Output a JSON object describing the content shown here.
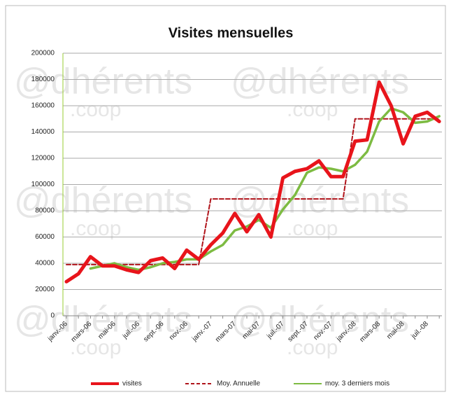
{
  "chart_data": {
    "type": "line",
    "title": "Visites mensuelles",
    "watermark": [
      "@dhérents",
      ".coop"
    ],
    "categories": [
      "janv.-06",
      null,
      "mars-06",
      null,
      "mai-06",
      null,
      "juil.-06",
      null,
      "sept.-06",
      null,
      "nov.-06",
      null,
      "janv.-07",
      null,
      "mars-07",
      null,
      "mai-07",
      null,
      "juil.-07",
      null,
      "sept.-07",
      null,
      "nov.-07",
      null,
      "janv.-08",
      null,
      "mars-08",
      null,
      "mai-08",
      null,
      "juil.-08",
      null
    ],
    "series": [
      {
        "name": "visites",
        "color": "#e8141b",
        "style": "solid",
        "values": [
          26000,
          32000,
          45000,
          38000,
          38000,
          35000,
          33000,
          42000,
          44000,
          36000,
          50000,
          43000,
          54000,
          63000,
          78000,
          64000,
          77000,
          60000,
          105000,
          110000,
          112000,
          118000,
          106000,
          106000,
          133000,
          134000,
          178000,
          160000,
          131000,
          152000,
          155000,
          148000
        ]
      },
      {
        "name": "Moy. Annuelle",
        "color": "#b0141b",
        "style": "dashed",
        "values": [
          39000,
          39000,
          39000,
          39000,
          39000,
          39000,
          39000,
          39000,
          39000,
          39000,
          39000,
          39000,
          89000,
          89000,
          89000,
          89000,
          89000,
          89000,
          89000,
          89000,
          89000,
          89000,
          89000,
          89000,
          150000,
          150000,
          150000,
          150000,
          150000,
          150000,
          150000,
          150000
        ]
      },
      {
        "name": "moy. 3 derniers mois",
        "color": "#7dbb42",
        "style": "solid",
        "values": [
          null,
          null,
          36000,
          38000,
          40000,
          37000,
          35000,
          37000,
          40000,
          41000,
          43000,
          43000,
          49000,
          54000,
          65000,
          68000,
          73000,
          67000,
          81000,
          92000,
          109000,
          113000,
          112000,
          110000,
          115000,
          125000,
          148000,
          158000,
          155000,
          147000,
          148000,
          152000
        ]
      }
    ],
    "ylim": [
      0,
      200000
    ],
    "yticks": [
      0,
      20000,
      40000,
      60000,
      80000,
      100000,
      120000,
      140000,
      160000,
      180000,
      200000
    ],
    "grid": true,
    "legend": "bottom"
  }
}
